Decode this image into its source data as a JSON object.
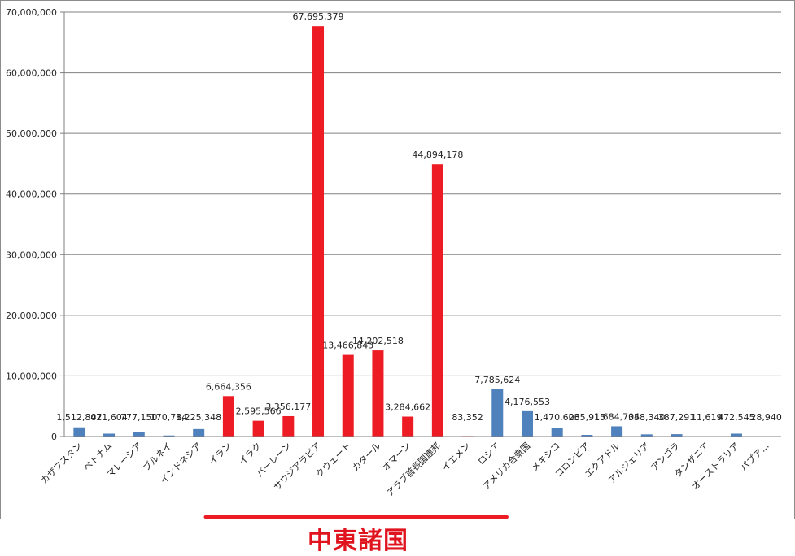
{
  "chart_data": {
    "type": "bar",
    "title": "",
    "xlabel": "",
    "ylabel": "",
    "ylim": [
      0,
      70000000
    ],
    "yticks": [
      "0",
      "10,000,000",
      "20,000,000",
      "30,000,000",
      "40,000,000",
      "50,000,000",
      "60,000,000",
      "70,000,000"
    ],
    "grid": true,
    "legend": "none",
    "colors": {
      "default": "#4f81bd",
      "highlight": "#ed1c24",
      "grid": "#808080"
    },
    "categories": [
      "カザフスタン",
      "ベトナム",
      "マレーシア",
      "ブルネイ",
      "インドネシア",
      "イラン",
      "イラク",
      "バーレーン",
      "サウジアラビア",
      "クウェート",
      "カタール",
      "オマーン",
      "アラブ首長国連邦",
      "イエメン",
      "ロシア",
      "アメリカ合衆国",
      "メキシコ",
      "コロンビア",
      "エクアドル",
      "アルジェリア",
      "アンゴラ",
      "タンザニア",
      "オーストラリア",
      "パプア…"
    ],
    "values": [
      1512802,
      471604,
      777150,
      170784,
      1225348,
      6664356,
      2595566,
      3356177,
      67695379,
      13466843,
      14202518,
      3284662,
      44894178,
      83352,
      7785624,
      4176553,
      1470603,
      265915,
      1684704,
      358340,
      387291,
      11619,
      472545,
      28940
    ],
    "value_labels": [
      "1,512,802",
      "471,604",
      "777,150",
      "170,784",
      "1,225,348",
      "6,664,356",
      "2,595,566",
      "3,356,177",
      "67,695,379",
      "13,466,843",
      "14,202,518",
      "3,284,662",
      "44,894,178",
      "83,352",
      "7,785,624",
      "4,176,553",
      "1,470,603",
      "265,915",
      "1,684,704",
      "358,340",
      "387,291",
      "11,619",
      "472,545",
      "28,940"
    ],
    "highlight": [
      false,
      false,
      false,
      false,
      false,
      true,
      true,
      true,
      true,
      true,
      true,
      true,
      true,
      true,
      false,
      false,
      false,
      false,
      false,
      false,
      false,
      false,
      false,
      false
    ]
  },
  "annotation": {
    "label": "中東諸国",
    "color": "#ed1c24"
  }
}
